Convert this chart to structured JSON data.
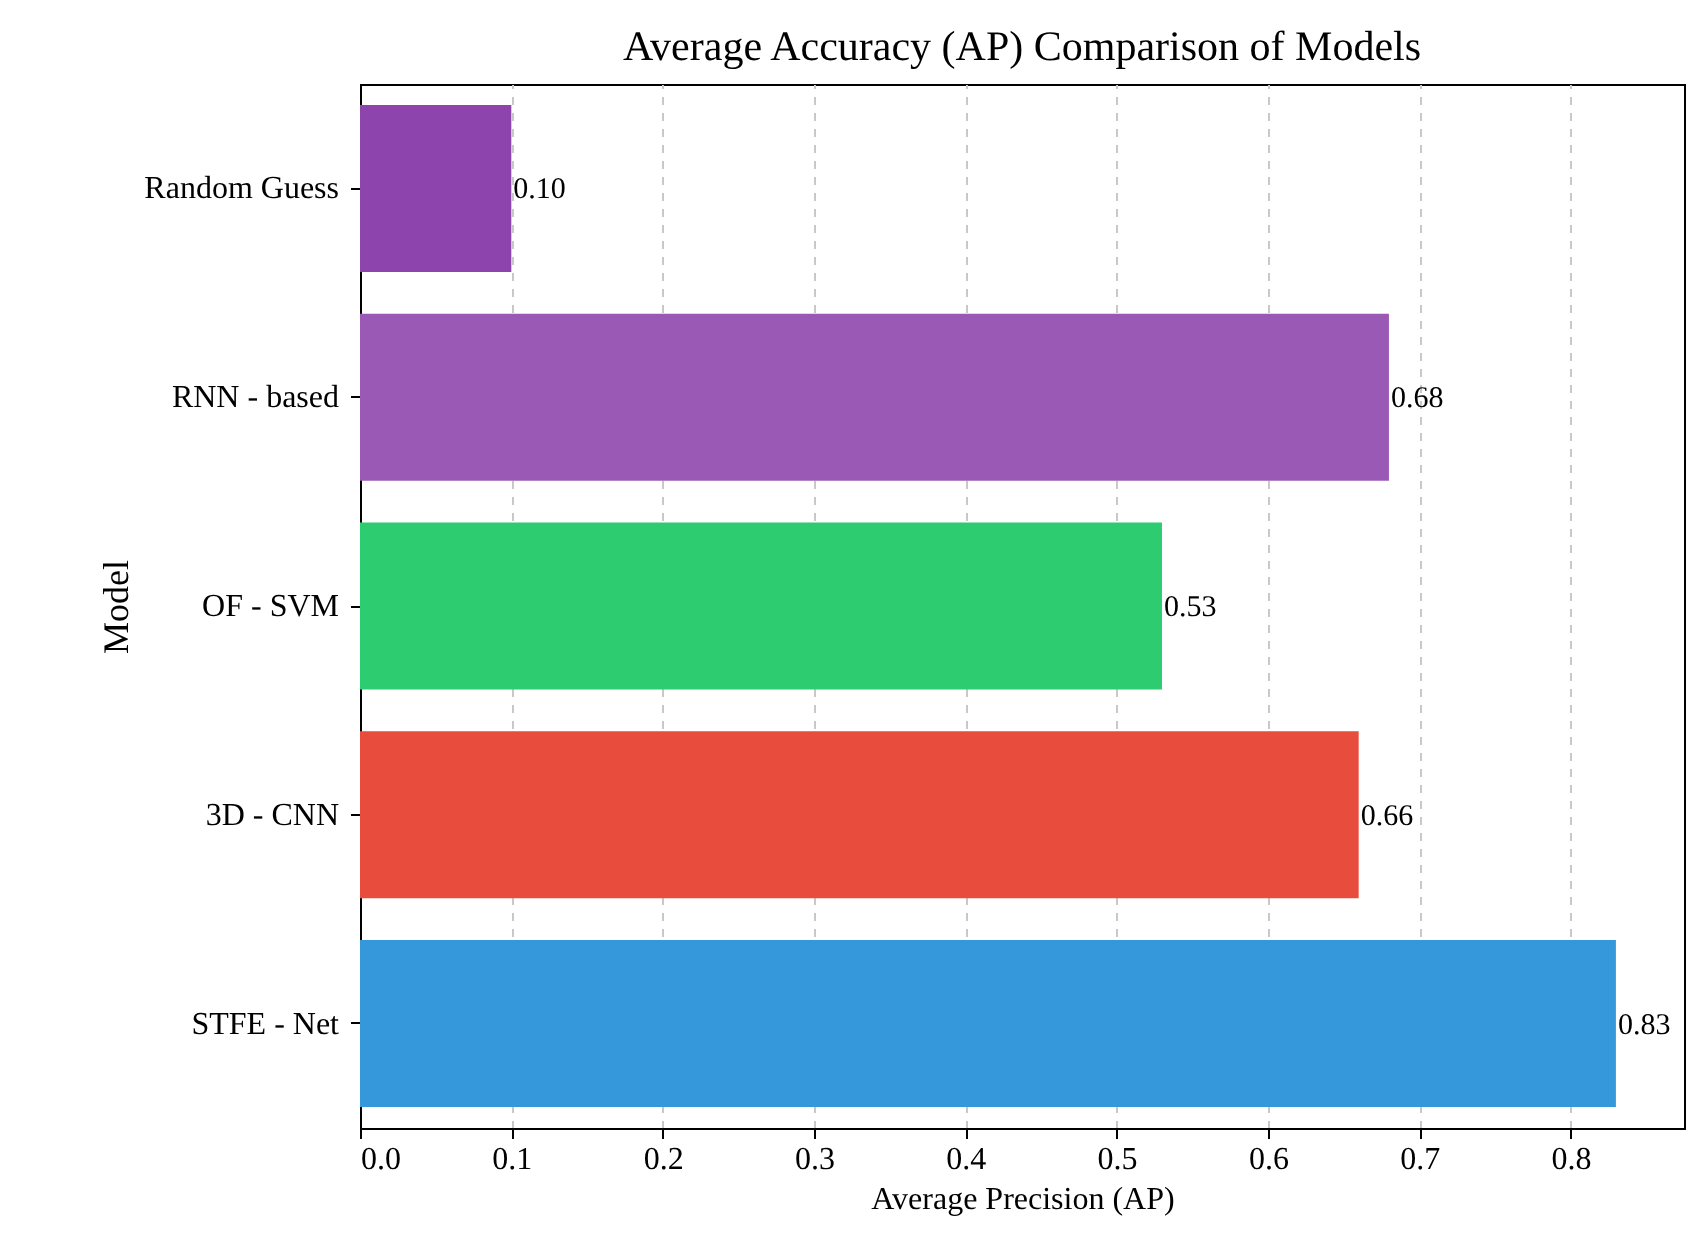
{
  "chart_data": {
    "type": "bar",
    "orientation": "horizontal",
    "title": "Average Accuracy (AP) Comparison of Models",
    "xlabel": "Average Precision (AP)",
    "ylabel": "Model",
    "categories": [
      "Random Guess",
      "RNN - based",
      "OF - SVM",
      "3D - CNN",
      "STFE - Net"
    ],
    "values": [
      0.1,
      0.68,
      0.53,
      0.66,
      0.83
    ],
    "value_labels": [
      "0.10",
      "0.68",
      "0.53",
      "0.66",
      "0.83"
    ],
    "colors": [
      "#8e44ad",
      "#9b59b6",
      "#2ecc71",
      "#e74c3c",
      "#3498db"
    ],
    "xlim": [
      0,
      0.875
    ],
    "xticks": [
      {
        "value": 0,
        "label": "0.0"
      },
      {
        "value": 0.1,
        "label": "0.1"
      },
      {
        "value": 0.2,
        "label": "0.2"
      },
      {
        "value": 0.3,
        "label": "0.3"
      },
      {
        "value": 0.4,
        "label": "0.4"
      },
      {
        "value": 0.5,
        "label": "0.5"
      },
      {
        "value": 0.6,
        "label": "0.6"
      },
      {
        "value": 0.7,
        "label": "0.7"
      },
      {
        "value": 0.8,
        "label": "0.8"
      }
    ],
    "grid": "x"
  }
}
